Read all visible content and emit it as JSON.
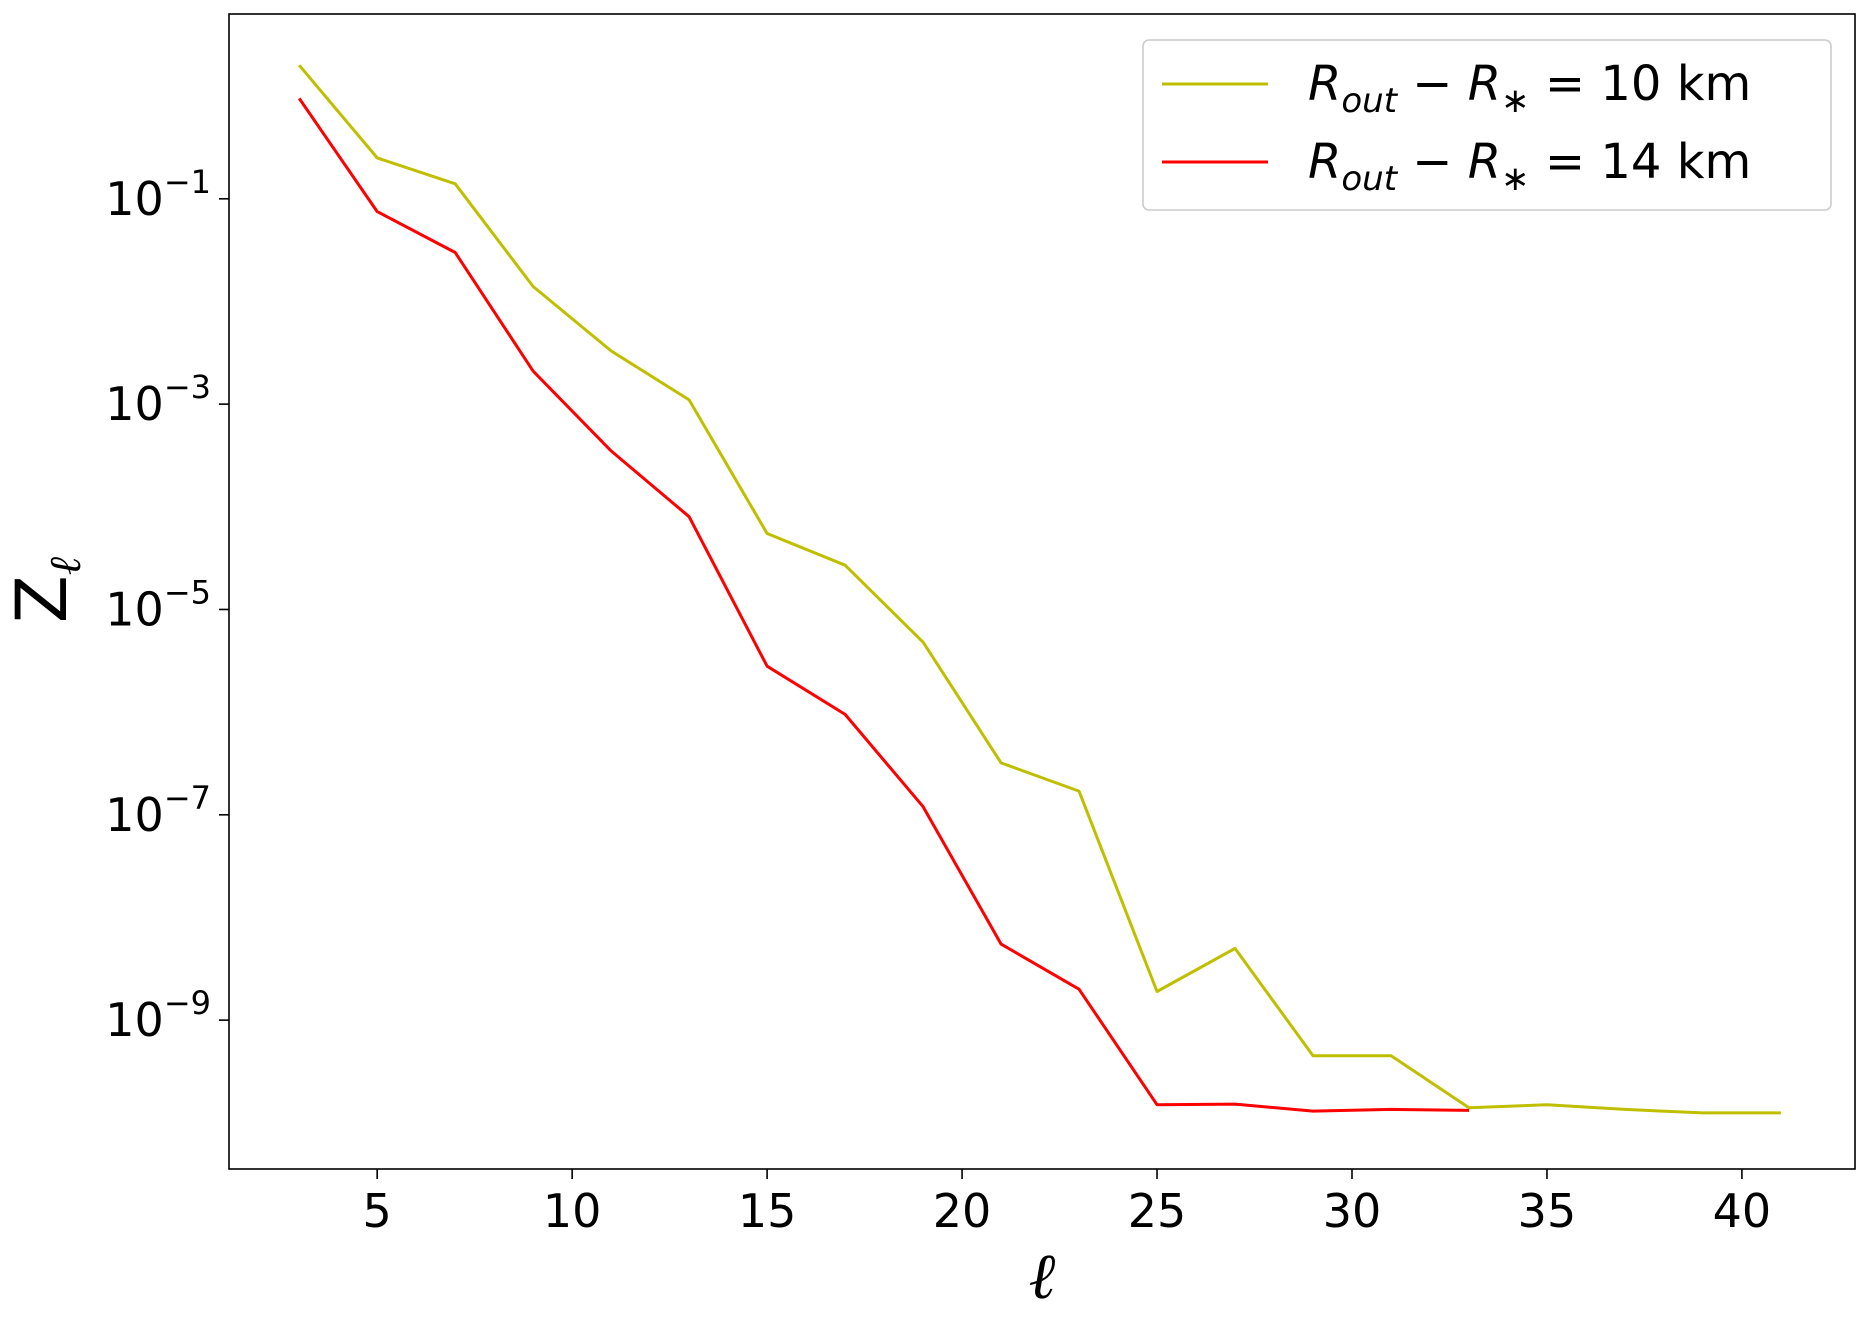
{
  "chart_data": {
    "type": "line",
    "xlabel": "ℓ",
    "ylabel": {
      "base": "Z",
      "sub": "ℓ"
    },
    "xlim": [
      1.2,
      42.9
    ],
    "ylim_log10": [
      -10.45,
      0.8
    ],
    "yscale": "log",
    "x_ticks": [
      5,
      10,
      15,
      20,
      25,
      30,
      35,
      40
    ],
    "x_tick_labels": [
      "5",
      "10",
      "15",
      "20",
      "25",
      "30",
      "35",
      "40"
    ],
    "y_ticks_log10": [
      -1,
      -3,
      -5,
      -7,
      -9
    ],
    "y_tick_labels": [
      {
        "base": "10",
        "exp": "−1"
      },
      {
        "base": "10",
        "exp": "−3"
      },
      {
        "base": "10",
        "exp": "−5"
      },
      {
        "base": "10",
        "exp": "−7"
      },
      {
        "base": "10",
        "exp": "−9"
      }
    ],
    "legend_position": "top-right",
    "series": [
      {
        "name": "R_out − R_* = 10 km",
        "label_parts": {
          "r": "R",
          "sub_out": "out",
          "minus": " − ",
          "rstar": "R",
          "sub_star": "∗",
          "eq": " = ",
          "val": " 10 km"
        },
        "color": "#bfbf00",
        "x": [
          3,
          5,
          7,
          9,
          11,
          13,
          15,
          17,
          19,
          21,
          23,
          25,
          27,
          29,
          31,
          33,
          35,
          37,
          39,
          41
        ],
        "y": [
          2.0,
          0.25,
          0.14,
          0.014,
          0.0033,
          0.0011,
          5.5e-05,
          2.7e-05,
          4.8e-06,
          3.2e-07,
          1.7e-07,
          1.9e-09,
          5e-09,
          4.5e-10,
          4.5e-10,
          1.4e-10,
          1.5e-10,
          1.35e-10,
          1.25e-10,
          1.25e-10
        ]
      },
      {
        "name": "R_out − R_* = 14 km",
        "label_parts": {
          "r": "R",
          "sub_out": "out",
          "minus": " − ",
          "rstar": "R",
          "sub_star": "∗",
          "eq": " = ",
          "val": " 14 km"
        },
        "color": "#ff0000",
        "x": [
          3,
          5,
          7,
          9,
          11,
          13,
          15,
          17,
          19,
          21,
          23,
          25,
          27,
          29,
          31,
          33
        ],
        "y": [
          0.95,
          0.075,
          0.03,
          0.0021,
          0.00035,
          8e-05,
          2.8e-06,
          9.5e-07,
          1.2e-07,
          5.5e-09,
          2e-09,
          1.5e-10,
          1.52e-10,
          1.3e-10,
          1.35e-10,
          1.32e-10
        ]
      }
    ]
  }
}
